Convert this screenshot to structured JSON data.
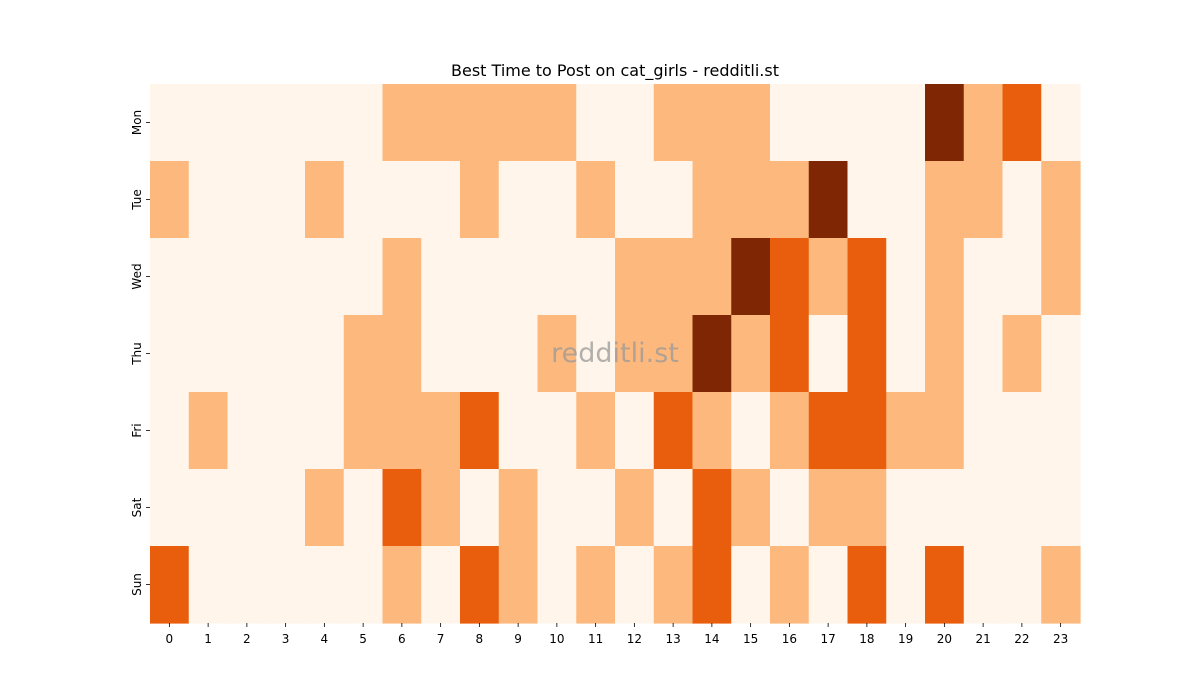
{
  "chart_data": {
    "type": "heatmap",
    "title": "Best Time to Post on cat_girls - redditli.st",
    "watermark": "redditli.st",
    "x": [
      "0",
      "1",
      "2",
      "3",
      "4",
      "5",
      "6",
      "7",
      "8",
      "9",
      "10",
      "11",
      "12",
      "13",
      "14",
      "15",
      "16",
      "17",
      "18",
      "19",
      "20",
      "21",
      "22",
      "23"
    ],
    "y": [
      "Mon",
      "Tue",
      "Wed",
      "Thu",
      "Fri",
      "Sat",
      "Sun"
    ],
    "colorbar": false,
    "value_range": [
      0,
      3
    ],
    "palette": [
      "#fff5eb",
      "#fdb97d",
      "#e95e0d",
      "#7f2704"
    ],
    "values": [
      [
        0,
        0,
        0,
        0,
        0,
        0,
        1,
        1,
        1,
        1,
        1,
        0,
        0,
        1,
        1,
        1,
        0,
        0,
        0,
        0,
        3,
        1,
        2,
        0
      ],
      [
        1,
        0,
        0,
        0,
        1,
        0,
        0,
        0,
        1,
        0,
        0,
        1,
        0,
        0,
        1,
        1,
        1,
        3,
        0,
        0,
        1,
        1,
        0,
        1
      ],
      [
        0,
        0,
        0,
        0,
        0,
        0,
        1,
        0,
        0,
        0,
        0,
        0,
        1,
        1,
        1,
        3,
        2,
        1,
        2,
        0,
        1,
        0,
        0,
        1
      ],
      [
        0,
        0,
        0,
        0,
        0,
        1,
        1,
        0,
        0,
        0,
        1,
        0,
        1,
        1,
        3,
        1,
        2,
        0,
        2,
        0,
        1,
        0,
        1,
        0
      ],
      [
        0,
        1,
        0,
        0,
        0,
        1,
        1,
        1,
        2,
        0,
        0,
        1,
        0,
        2,
        1,
        0,
        1,
        2,
        2,
        1,
        1,
        0,
        0,
        0
      ],
      [
        0,
        0,
        0,
        0,
        1,
        0,
        2,
        1,
        0,
        1,
        0,
        0,
        1,
        0,
        2,
        1,
        0,
        1,
        1,
        0,
        0,
        0,
        0,
        0
      ],
      [
        2,
        0,
        0,
        0,
        0,
        0,
        1,
        0,
        2,
        1,
        0,
        1,
        0,
        1,
        2,
        0,
        1,
        0,
        2,
        0,
        2,
        0,
        0,
        1
      ]
    ]
  }
}
